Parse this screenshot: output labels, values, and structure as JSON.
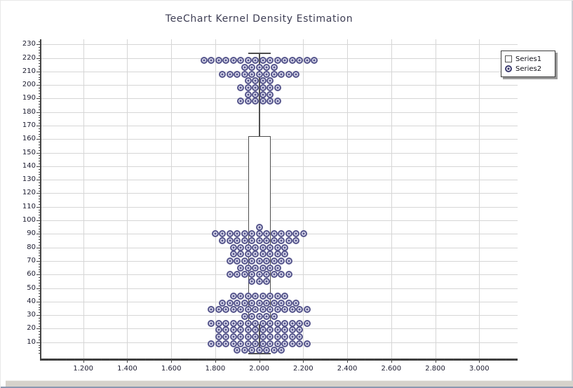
{
  "title": "TeeChart Kernel Density Estimation",
  "legend": {
    "items": [
      {
        "label": "Series1",
        "marker": "square"
      },
      {
        "label": "Series2",
        "marker": "circled-dot"
      }
    ]
  },
  "colors": {
    "marker_ring": "#56568c",
    "marker_fill": "#f0f0fa",
    "grid": "#d6d6d6",
    "axis": "#454545",
    "box_border": "#4f4f4f",
    "tick_text": "#1c1c30",
    "title_text": "#3e3e54"
  },
  "chart_data": {
    "type": "boxplot+scatter",
    "title": "TeeChart Kernel Density Estimation",
    "grid": "on",
    "legend_position": "top-right",
    "x_axis": {
      "tick_values": [
        1.2,
        1.4,
        1.6,
        1.8,
        2.0,
        2.2,
        2.4,
        2.6,
        2.8,
        3.0
      ],
      "tick_labels": [
        "1.200",
        "1.400",
        "1.600",
        "1.800",
        "2.000",
        "2.200",
        "2.400",
        "2.600",
        "2.800",
        "3.000"
      ],
      "minor_tick_step": 0.04,
      "range": [
        1.01,
        3.17
      ]
    },
    "y_axis": {
      "tick_values": [
        10,
        20,
        30,
        40,
        50,
        60,
        70,
        80,
        90,
        100,
        110,
        120,
        130,
        140,
        150,
        160,
        170,
        180,
        190,
        200,
        210,
        220,
        230
      ],
      "tick_labels": [
        "10",
        "20",
        "30",
        "40",
        "50",
        "60",
        "70",
        "80",
        "90",
        "100",
        "110",
        "120",
        "130",
        "140",
        "150",
        "160",
        "170",
        "180",
        "190",
        "200",
        "210",
        "220",
        "230"
      ],
      "minor_tick_step": 2,
      "range": [
        -2,
        234
      ]
    },
    "series": [
      {
        "name": "Series1",
        "type": "box",
        "x_center": 2.0,
        "box_width": 0.102,
        "q1": 23,
        "q3": 162,
        "whisker_low": 2,
        "whisker_high": 224
      },
      {
        "name": "Series2",
        "type": "scatter",
        "marker": "circled-dot",
        "x_center": 2.0,
        "x_spacing": 0.0335,
        "rows": [
          {
            "y": 218,
            "count": 16
          },
          {
            "y": 213,
            "count": 5
          },
          {
            "y": 208,
            "count": 11
          },
          {
            "y": 203,
            "count": 4
          },
          {
            "y": 198,
            "count": 6
          },
          {
            "y": 193,
            "count": 4
          },
          {
            "y": 188,
            "count": 6
          },
          {
            "y": 95,
            "count": 1
          },
          {
            "y": 90,
            "count": 13
          },
          {
            "y": 85,
            "count": 11
          },
          {
            "y": 80,
            "count": 8
          },
          {
            "y": 75,
            "count": 8
          },
          {
            "y": 70,
            "count": 9
          },
          {
            "y": 65,
            "count": 6
          },
          {
            "y": 60,
            "count": 9
          },
          {
            "y": 55,
            "count": 3
          },
          {
            "y": 44,
            "count": 8
          },
          {
            "y": 39,
            "count": 11
          },
          {
            "y": 34,
            "count": 14
          },
          {
            "y": 29,
            "count": 5
          },
          {
            "y": 24,
            "count": 14
          },
          {
            "y": 19,
            "count": 12
          },
          {
            "y": 14,
            "count": 12
          },
          {
            "y": 9,
            "count": 14
          },
          {
            "y": 4,
            "count": 7
          }
        ]
      }
    ]
  }
}
